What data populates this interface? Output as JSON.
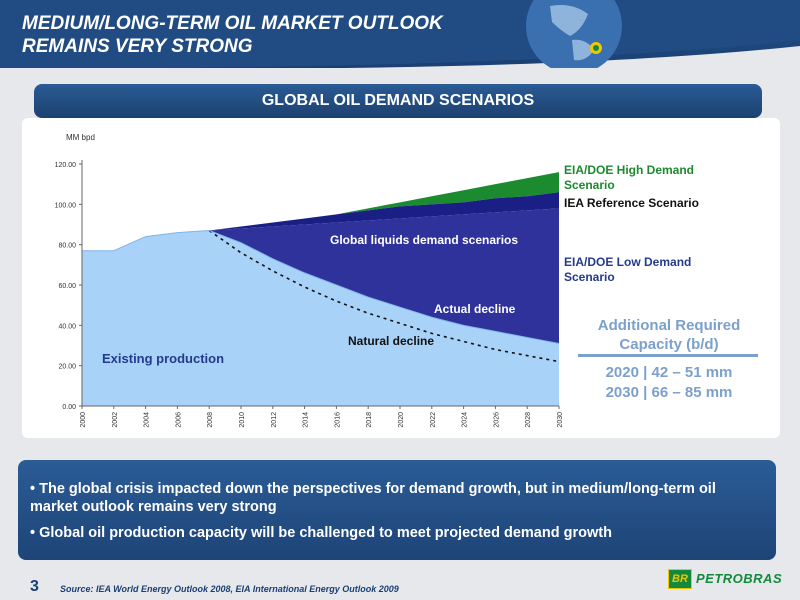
{
  "header": {
    "title_line1": "MEDIUM/LONG-TERM OIL MARKET OUTLOOK",
    "title_line2": "REMAINS VERY STRONG"
  },
  "section": {
    "title": "GLOBAL OIL DEMAND SCENARIOS"
  },
  "chart_data": {
    "type": "area",
    "ylabel": "MM bpd",
    "xlabel": "",
    "ylim": [
      0,
      120
    ],
    "yticks": [
      "0.00",
      "20.00",
      "40.00",
      "60.00",
      "80.00",
      "100.00",
      "120.00"
    ],
    "ytick_values": [
      0,
      20,
      40,
      60,
      80,
      100,
      120
    ],
    "x": [
      2000,
      2002,
      2004,
      2006,
      2008,
      2010,
      2012,
      2014,
      2016,
      2018,
      2020,
      2022,
      2024,
      2026,
      2028,
      2030
    ],
    "series": [
      {
        "name": "Existing production",
        "values": [
          77,
          77,
          84,
          86,
          87,
          81,
          73,
          66,
          60,
          54,
          49,
          44,
          40,
          37,
          34,
          31
        ]
      },
      {
        "name": "Natural decline",
        "values": [
          77,
          77,
          84,
          86,
          87,
          76,
          67,
          59,
          52,
          46,
          41,
          36,
          32,
          28,
          25,
          22
        ]
      },
      {
        "name": "EIA/DOE Low Demand Scenario",
        "values": [
          77,
          77,
          84,
          86,
          87,
          88,
          89,
          90,
          91,
          92,
          93,
          94,
          95,
          96,
          97,
          98
        ]
      },
      {
        "name": "IEA Reference Scenario",
        "values": [
          77,
          77,
          84,
          86,
          87,
          89,
          91,
          93,
          95,
          97,
          99,
          100,
          101,
          103,
          104,
          106
        ]
      },
      {
        "name": "EIA/DOE High Demand Scenario",
        "values": [
          77,
          77,
          84,
          86,
          87,
          89,
          91,
          93,
          95,
          98,
          101,
          104,
          107,
          110,
          113,
          116
        ]
      }
    ],
    "annotations": {
      "high": "EIA/DOE High Demand Scenario",
      "iea": "IEA Reference Scenario",
      "low": "EIA/DOE Low Demand Scenario",
      "global": "Global liquids demand scenarios",
      "actual": "Actual decline",
      "natural": "Natural decline",
      "existing": "Existing production"
    },
    "colors": {
      "existing": "#a8d2f8",
      "low": "#2f329a",
      "iea": "#1a1f86",
      "high": "#1c8a2e",
      "text_scenario": "#233b8c"
    }
  },
  "capacity": {
    "title_line1": "Additional Required",
    "title_line2": "Capacity (b/d)",
    "line1": "2020 | 42 – 51 mm",
    "line2": "2030 | 66 – 85 mm"
  },
  "bullets": {
    "b1": "• The global crisis impacted down the perspectives for demand growth, but in medium/long-term oil market outlook remains very strong",
    "b2": "• Global oil production capacity will be challenged to meet projected demand growth"
  },
  "footer": {
    "page": "3",
    "source": "Source: IEA World Energy Outlook 2008, EIA International Energy Outlook 2009",
    "logo_br": "BR",
    "logo_text": "PETROBRAS"
  }
}
